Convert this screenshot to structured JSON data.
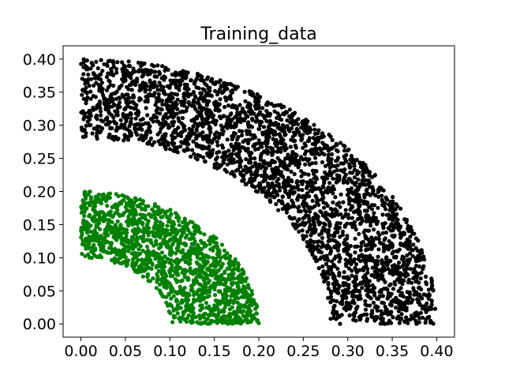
{
  "chart_data": {
    "type": "scatter",
    "title": "Training_data",
    "xlabel": "",
    "ylabel": "",
    "xlim": [
      -0.02,
      0.42
    ],
    "ylim": [
      -0.02,
      0.42
    ],
    "x_ticks": [
      "0.00",
      "0.05",
      "0.10",
      "0.15",
      "0.20",
      "0.25",
      "0.30",
      "0.35",
      "0.40"
    ],
    "y_ticks": [
      "0.00",
      "0.05",
      "0.10",
      "0.15",
      "0.20",
      "0.25",
      "0.30",
      "0.35",
      "0.40"
    ],
    "grid": false,
    "legend": false,
    "series": [
      {
        "color": "#008000",
        "region": "quarter annulus centered at origin, first quadrant",
        "r_range": [
          0.1,
          0.2
        ],
        "angle_range_deg": [
          0,
          90
        ],
        "points": 1500
      },
      {
        "color": "#000000",
        "region": "quarter annulus centered at origin, first quadrant",
        "r_range": [
          0.28,
          0.4
        ],
        "angle_range_deg": [
          0,
          90
        ],
        "points": 3000
      }
    ]
  }
}
